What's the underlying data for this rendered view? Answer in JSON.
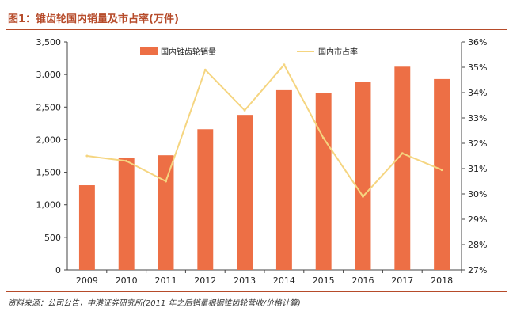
{
  "header": {
    "title": "图1：锥齿轮国内销量及市占率(万件)"
  },
  "footer": {
    "source": "资料来源：公司公告，中港证券研究所(2011 年之后销量根据锥齿轮营收/价格计算)"
  },
  "colors": {
    "bar": "#ed6f45",
    "line": "#f5d580",
    "accent": "#b64b2a"
  },
  "chart_data": {
    "type": "bar",
    "title": "图1：锥齿轮国内销量及市占率(万件)",
    "categories": [
      "2009",
      "2010",
      "2011",
      "2012",
      "2013",
      "2014",
      "2015",
      "2016",
      "2017",
      "2018"
    ],
    "series": [
      {
        "name": "国内锥齿轮销量",
        "type": "bar",
        "axis": "left",
        "values": [
          1300,
          1720,
          1760,
          2160,
          2380,
          2760,
          2710,
          2890,
          3120,
          2930
        ]
      },
      {
        "name": "国内市占率",
        "type": "line",
        "axis": "right",
        "values": [
          31.5,
          31.3,
          30.5,
          34.9,
          33.3,
          35.1,
          32.2,
          29.9,
          31.6,
          30.95
        ]
      }
    ],
    "y_left": {
      "min": 0,
      "max": 3500,
      "step": 500,
      "tick_labels": [
        "0",
        "500",
        "1,000",
        "1,500",
        "2,000",
        "2,500",
        "3,000",
        "3,500"
      ]
    },
    "y_right": {
      "min": 27,
      "max": 36,
      "step": 1,
      "tick_labels": [
        "27%",
        "28%",
        "29%",
        "30%",
        "31%",
        "32%",
        "33%",
        "34%",
        "35%",
        "36%"
      ]
    },
    "legend": [
      "国内锥齿轮销量",
      "国内市占率"
    ],
    "legend_position": "top"
  }
}
